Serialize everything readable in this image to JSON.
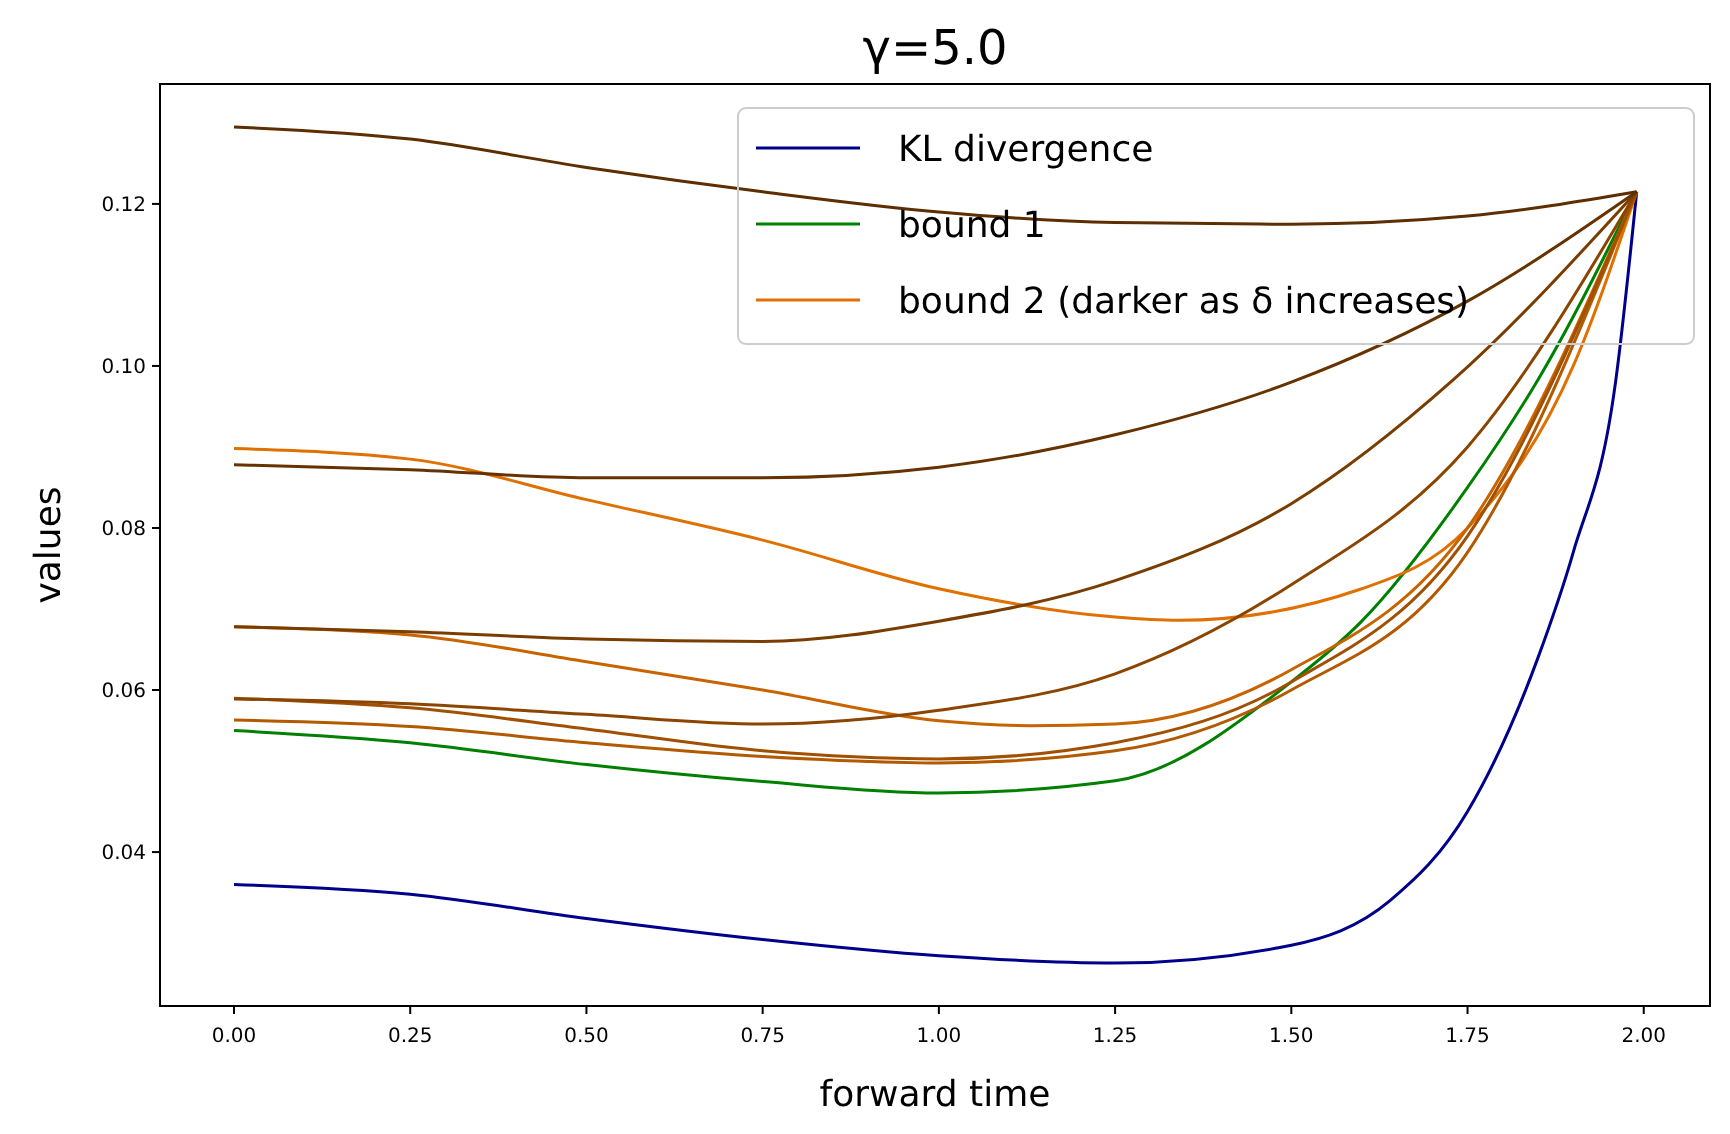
{
  "chart_data": {
    "type": "line",
    "title": "γ=5.0",
    "xlabel": "forward time",
    "ylabel": "values",
    "xlim": [
      -0.105,
      2.094
    ],
    "ylim": [
      0.021,
      0.1348
    ],
    "xticks": [
      {
        "value": 0,
        "label": "0.00"
      },
      {
        "value": 0.25,
        "label": "0.25"
      },
      {
        "value": 0.5,
        "label": "0.50"
      },
      {
        "value": 0.75,
        "label": "0.75"
      },
      {
        "value": 1,
        "label": "1.00"
      },
      {
        "value": 1.25,
        "label": "1.25"
      },
      {
        "value": 1.5,
        "label": "1.50"
      },
      {
        "value": 1.75,
        "label": "1.75"
      },
      {
        "value": 2,
        "label": "2.00"
      }
    ],
    "yticks": [
      {
        "value": 0.04,
        "label": "0.04"
      },
      {
        "value": 0.06,
        "label": "0.06"
      },
      {
        "value": 0.08,
        "label": "0.08"
      },
      {
        "value": 0.1,
        "label": "0.10"
      },
      {
        "value": 0.12,
        "label": "0.12"
      }
    ],
    "legend": "top right",
    "grid": false,
    "series": [
      {
        "name": "KL divergence",
        "color": "#00008b",
        "x": [
          0,
          0.25,
          0.5,
          0.75,
          1,
          1.25,
          1.5,
          1.64,
          1.75,
          1.85,
          1.9,
          1.96,
          1.99
        ],
        "values": [
          0.036,
          0.0348,
          0.0318,
          0.0292,
          0.0272,
          0.0263,
          0.0285,
          0.034,
          0.045,
          0.064,
          0.077,
          0.098,
          0.1215
        ]
      },
      {
        "name": "bound 1",
        "color": "#008000",
        "x": [
          0,
          0.25,
          0.5,
          0.75,
          1,
          1.25,
          1.5,
          1.6,
          1.75,
          1.85,
          1.99
        ],
        "values": [
          0.055,
          0.0535,
          0.0508,
          0.0487,
          0.0473,
          0.0488,
          0.061,
          0.0685,
          0.085,
          0.0983,
          0.1215
        ]
      },
      {
        "name": "bound 2 (darker as δ increases)",
        "color": "#e07000",
        "x": [
          0,
          0.25,
          0.5,
          0.75,
          1,
          1.25,
          1.34,
          1.6,
          1.75,
          1.9,
          1.99
        ],
        "values": [
          0.0898,
          0.0885,
          0.0835,
          0.0785,
          0.0725,
          0.069,
          0.0686,
          0.0725,
          0.08,
          0.1,
          0.1215
        ]
      },
      {
        "color": "#c86400",
        "x": [
          0,
          0.25,
          0.5,
          0.75,
          1,
          1.13,
          1.25,
          1.5,
          1.75,
          1.99
        ],
        "values": [
          0.0678,
          0.0668,
          0.0635,
          0.06,
          0.0562,
          0.0556,
          0.0558,
          0.0625,
          0.08,
          0.1215
        ]
      },
      {
        "color": "#b35900",
        "x": [
          0,
          0.25,
          0.5,
          0.75,
          1,
          1.25,
          1.5,
          1.75,
          1.99
        ],
        "values": [
          0.0563,
          0.0555,
          0.0535,
          0.0518,
          0.051,
          0.0525,
          0.06,
          0.077,
          0.1215
        ]
      },
      {
        "color": "#a05000",
        "x": [
          0,
          0.25,
          0.5,
          0.75,
          1,
          1.25,
          1.5,
          1.75,
          1.99
        ],
        "values": [
          0.059,
          0.0578,
          0.0552,
          0.0525,
          0.0515,
          0.0535,
          0.061,
          0.079,
          0.1215
        ]
      },
      {
        "color": "#8b4500",
        "x": [
          0,
          0.25,
          0.5,
          0.75,
          1,
          1.25,
          1.5,
          1.75,
          1.99
        ],
        "values": [
          0.0589,
          0.0583,
          0.057,
          0.0558,
          0.0575,
          0.062,
          0.073,
          0.09,
          0.1215
        ]
      },
      {
        "color": "#7a3d00",
        "x": [
          0,
          0.25,
          0.5,
          0.75,
          1,
          1.25,
          1.5,
          1.73,
          1.99
        ],
        "values": [
          0.0678,
          0.0672,
          0.0663,
          0.066,
          0.0685,
          0.0735,
          0.083,
          0.0983,
          0.1215
        ]
      },
      {
        "color": "#663300",
        "x": [
          0,
          0.25,
          0.5,
          0.75,
          1,
          1.25,
          1.5,
          1.75,
          1.99
        ],
        "values": [
          0.0878,
          0.0872,
          0.0862,
          0.0862,
          0.0875,
          0.0915,
          0.098,
          0.108,
          0.1215
        ]
      },
      {
        "color": "#5c2e00",
        "x": [
          0,
          0.25,
          0.5,
          0.75,
          1,
          1.25,
          1.5,
          1.75,
          1.99
        ],
        "values": [
          0.1295,
          0.128,
          0.1245,
          0.1215,
          0.119,
          0.1177,
          0.1175,
          0.1185,
          0.1215
        ]
      }
    ]
  }
}
